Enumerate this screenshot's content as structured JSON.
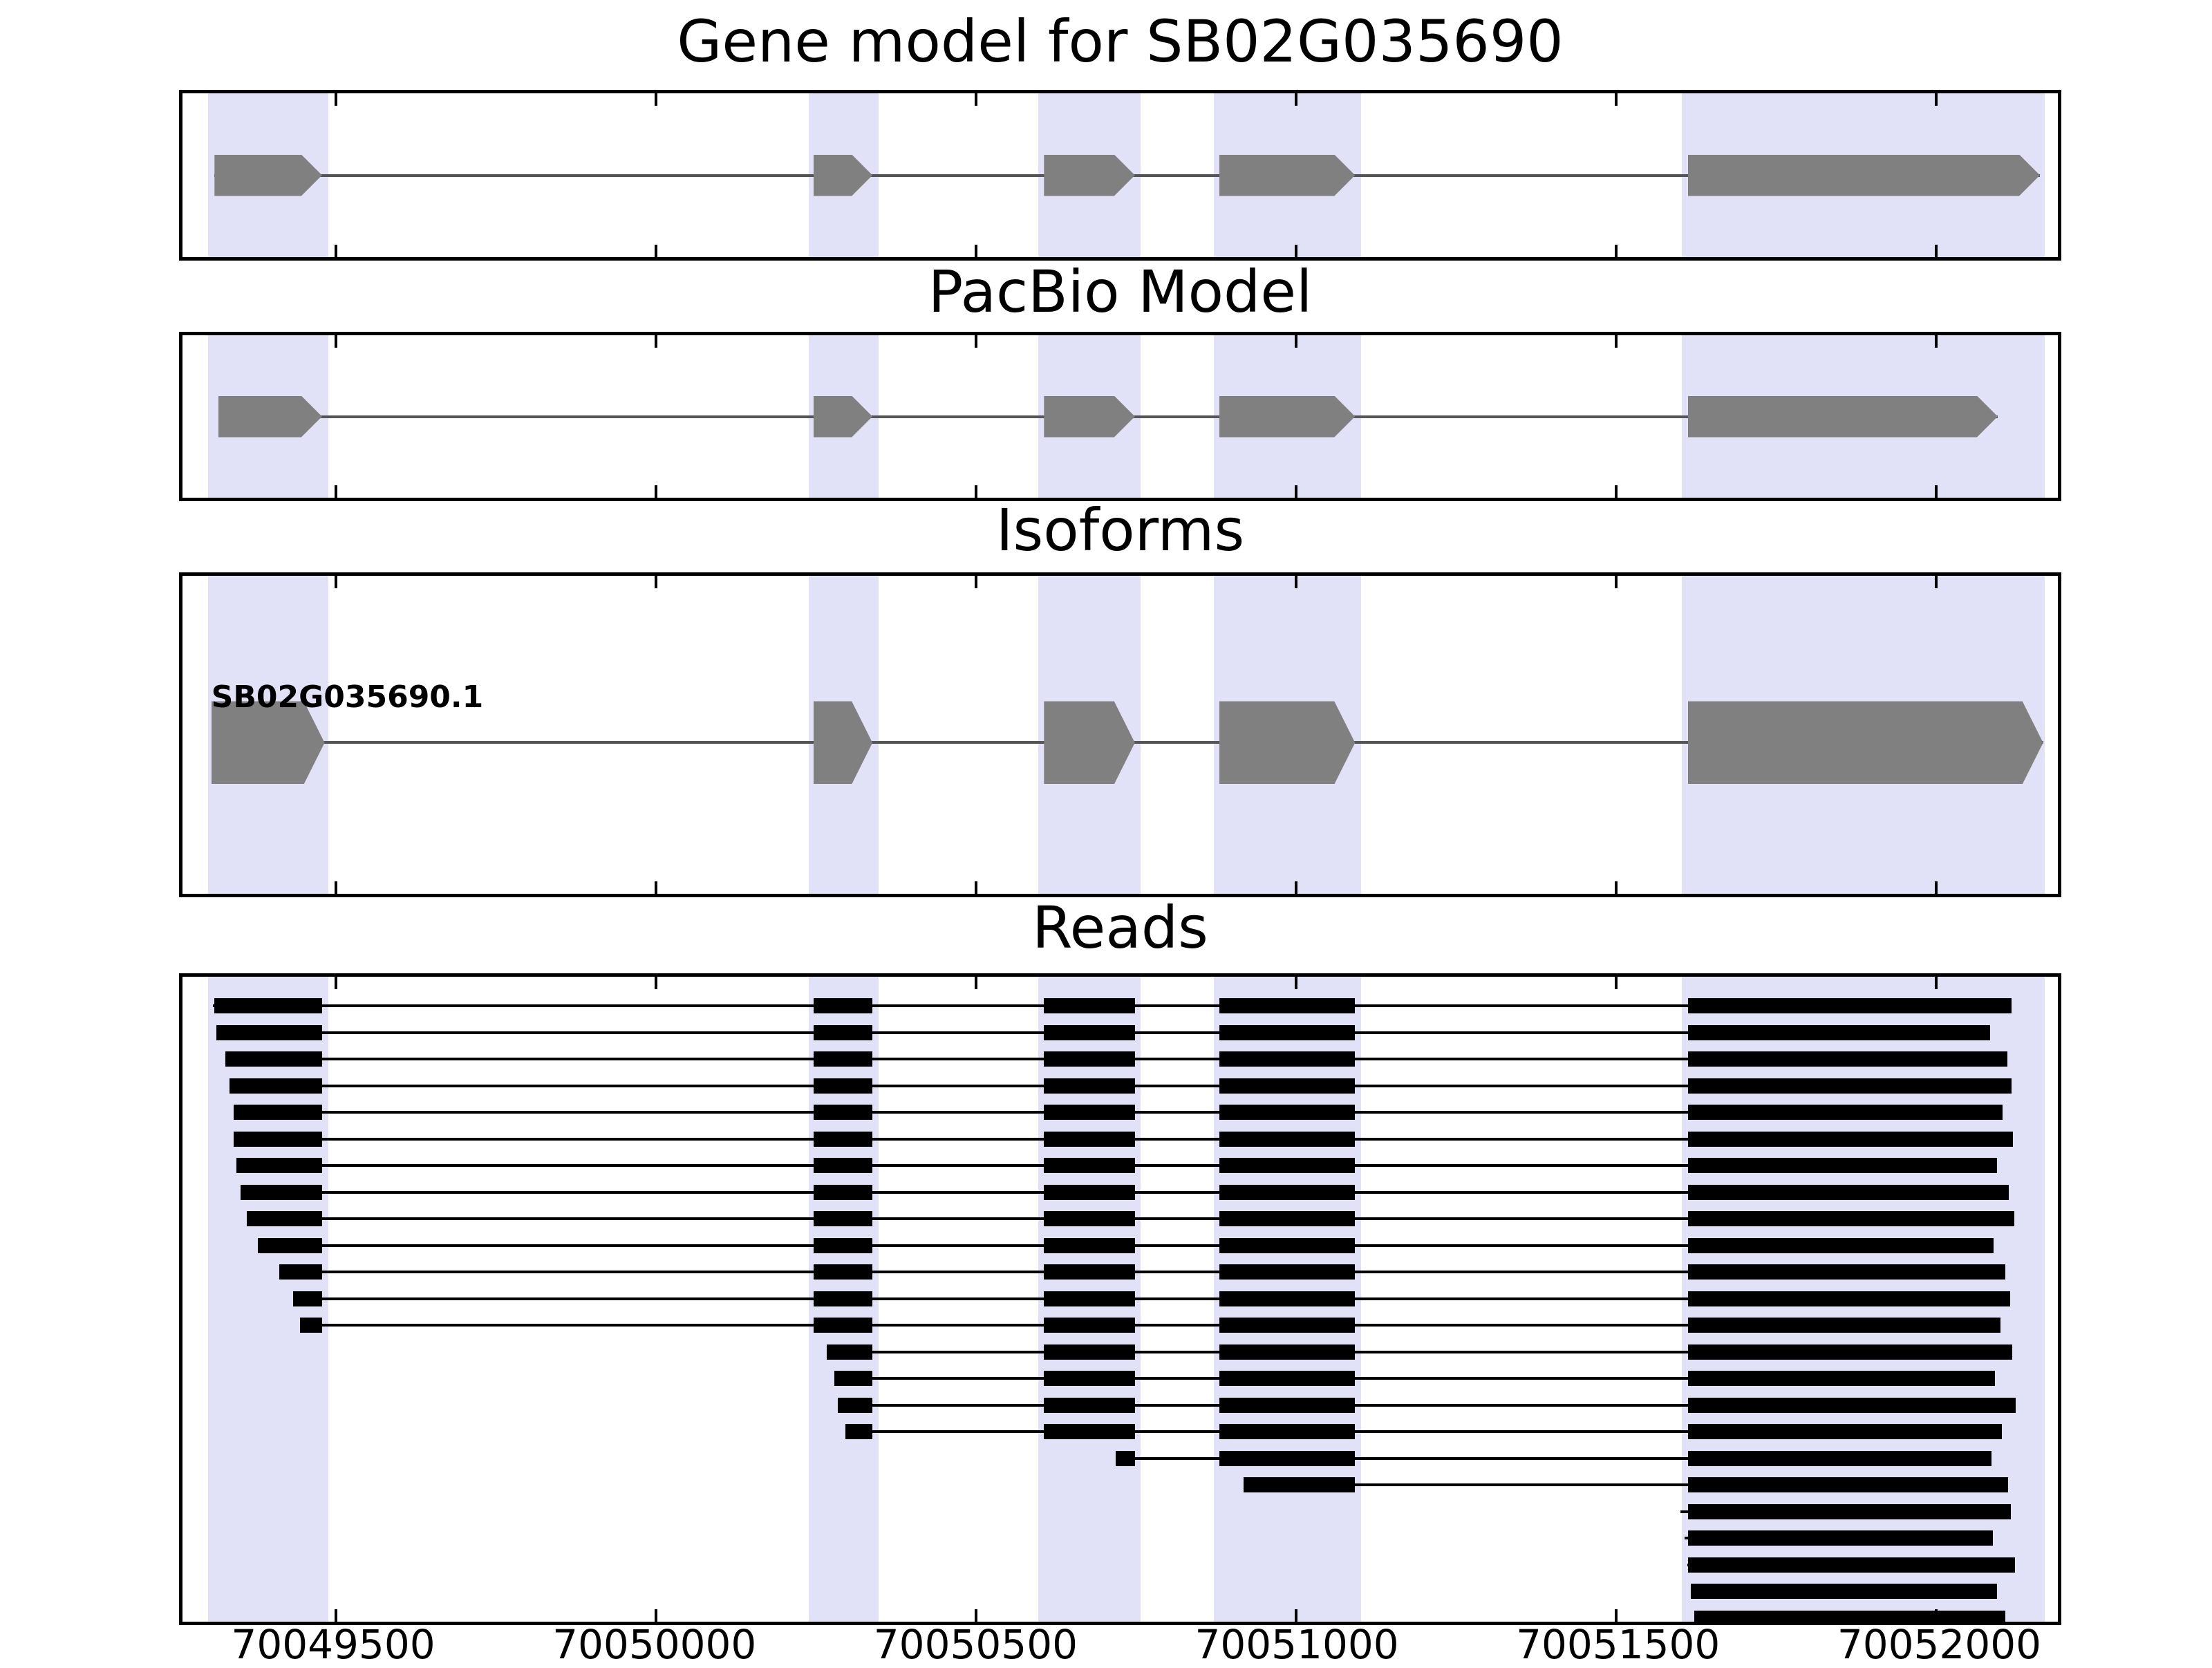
{
  "chart_data": {
    "type": "genome-tracks",
    "title": "Gene model for SB02G035690",
    "xlabel": "",
    "ylabel": "",
    "grid": false,
    "xlim": [
      70049260,
      70052190
    ],
    "xticks": {
      "values": [
        70049500,
        70050000,
        70050500,
        70051000,
        70051500,
        70052000
      ],
      "labels": [
        "70049500",
        "70050000",
        "70050500",
        "70051000",
        "70051500",
        "70052000"
      ]
    },
    "colors": {
      "highlight": "#e1e1f7",
      "model": "#808080",
      "read": "#000000",
      "intron_line": "#555555",
      "border": "#000000",
      "background": "#ffffff"
    },
    "highlight_regions": [
      [
        70049300,
        70049488
      ],
      [
        70050238,
        70050348
      ],
      [
        70050597,
        70050757
      ],
      [
        70050871,
        70051101
      ],
      [
        70051603,
        70052170
      ]
    ],
    "exon_template": [
      [
        70049310,
        70049478
      ],
      [
        70050246,
        70050338
      ],
      [
        70050606,
        70050748
      ],
      [
        70050880,
        70051092
      ],
      [
        70051612,
        70052162
      ]
    ],
    "panels": [
      {
        "id": "gene-model",
        "title": "Gene model for SB02G035690",
        "track_type": "model",
        "transcript": {
          "start": 70049310,
          "end": 70052162,
          "strand": "+",
          "exons": [
            [
              70049310,
              70049478
            ],
            [
              70050246,
              70050338
            ],
            [
              70050606,
              70050748
            ],
            [
              70050880,
              70051092
            ],
            [
              70051612,
              70052162
            ]
          ]
        }
      },
      {
        "id": "pacbio-model",
        "title": "PacBio Model",
        "track_type": "model",
        "transcript": {
          "start": 70049316,
          "end": 70052096,
          "strand": "+",
          "exons": [
            [
              70049316,
              70049478
            ],
            [
              70050246,
              70050338
            ],
            [
              70050606,
              70050748
            ],
            [
              70050880,
              70051092
            ],
            [
              70051612,
              70052096
            ]
          ]
        }
      },
      {
        "id": "isoforms",
        "title": "Isoforms",
        "track_type": "isoform",
        "isoforms": [
          {
            "label": "SB02G035690.1",
            "start": 70049305,
            "end": 70052167,
            "strand": "+",
            "exons": [
              [
                70049305,
                70049482
              ],
              [
                70050246,
                70050338
              ],
              [
                70050606,
                70050748
              ],
              [
                70050880,
                70051092
              ],
              [
                70051612,
                70052167
              ]
            ]
          }
        ]
      },
      {
        "id": "reads",
        "title": "Reads",
        "track_type": "reads",
        "reads": [
          {
            "start": 70049307,
            "end": 70052118
          },
          {
            "start": 70049313,
            "end": 70052084
          },
          {
            "start": 70049327,
            "end": 70052111
          },
          {
            "start": 70049333,
            "end": 70052118
          },
          {
            "start": 70049340,
            "end": 70052104
          },
          {
            "start": 70049340,
            "end": 70052120
          },
          {
            "start": 70049344,
            "end": 70052095
          },
          {
            "start": 70049351,
            "end": 70052113
          },
          {
            "start": 70049360,
            "end": 70052122
          },
          {
            "start": 70049378,
            "end": 70052090
          },
          {
            "start": 70049411,
            "end": 70052108
          },
          {
            "start": 70049433,
            "end": 70052116
          },
          {
            "start": 70049444,
            "end": 70052100
          },
          {
            "start": 70050267,
            "end": 70052119
          },
          {
            "start": 70050278,
            "end": 70052092
          },
          {
            "start": 70050284,
            "end": 70052124
          },
          {
            "start": 70050296,
            "end": 70052102
          },
          {
            "start": 70050718,
            "end": 70052086
          },
          {
            "start": 70050918,
            "end": 70052112
          },
          {
            "start": 70051600,
            "end": 70052117
          },
          {
            "start": 70051607,
            "end": 70052088
          },
          {
            "start": 70051611,
            "end": 70052123
          },
          {
            "start": 70051616,
            "end": 70052095
          },
          {
            "start": 70051622,
            "end": 70052108
          }
        ]
      }
    ]
  }
}
